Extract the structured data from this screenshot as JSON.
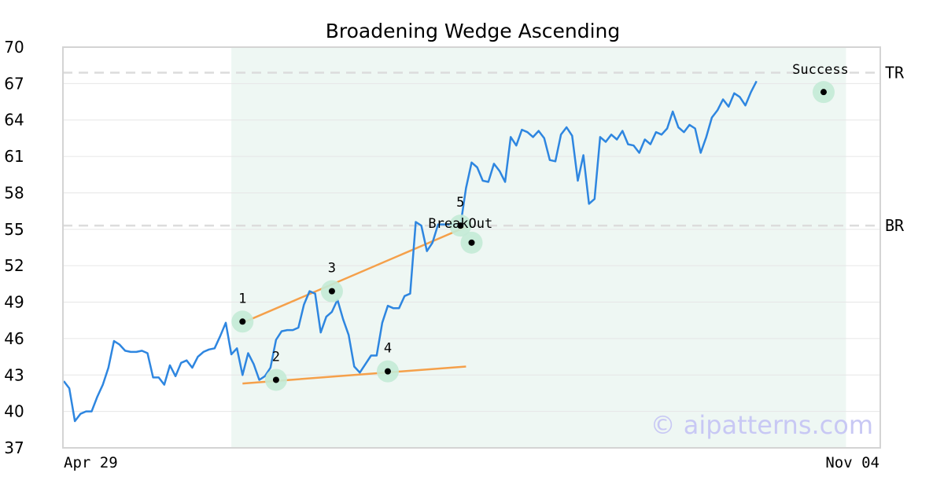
{
  "chart_data": {
    "type": "line",
    "title": "Broadening Wedge Ascending",
    "watermark": "© aipatterns.com",
    "ylim": [
      37,
      70
    ],
    "yticks": [
      37,
      40,
      43,
      46,
      49,
      52,
      55,
      58,
      61,
      64,
      67,
      70
    ],
    "xticks": [
      {
        "label": "Apr 29",
        "x": 0
      },
      {
        "label": "Nov 04",
        "x": 146
      }
    ],
    "xlim": [
      0,
      146
    ],
    "grid": true,
    "colors": {
      "line": "#2e86e0",
      "trendline": "#f5a04a",
      "pattern_zone": "#eef7f3",
      "marker_ring": "#c3ead6",
      "level_line": "#dcdcdc"
    },
    "pattern_zone": {
      "x_start": 30,
      "x_end": 140
    },
    "series": [
      {
        "values": [
          42.5,
          41.9,
          39.2,
          39.8,
          40.0,
          40.0,
          41.2,
          42.2,
          43.6,
          45.8,
          45.5,
          45.0,
          44.9,
          44.9,
          45.0,
          44.8,
          42.8,
          42.8,
          42.2,
          43.8,
          42.9,
          44.0,
          44.2,
          43.6,
          44.5,
          44.9,
          45.1,
          45.2,
          46.2,
          47.3,
          44.7,
          45.2,
          43.0,
          44.8,
          43.9,
          42.6,
          42.9,
          43.6,
          45.9,
          46.6,
          46.7,
          46.7,
          46.9,
          48.8,
          49.9,
          49.7,
          46.5,
          47.8,
          48.2,
          49.2,
          47.6,
          46.3,
          43.7,
          43.2,
          43.9,
          44.6,
          44.6,
          47.3,
          48.7,
          48.5,
          48.5,
          49.5,
          49.7,
          55.6,
          55.3,
          53.2,
          53.9,
          55.4,
          55.4,
          55.4,
          55.4,
          55.3,
          58.4,
          60.5,
          60.1,
          59.0,
          58.9,
          60.4,
          59.8,
          58.9,
          62.6,
          61.9,
          63.2,
          63.0,
          62.6,
          63.1,
          62.5,
          60.7,
          60.6,
          62.8,
          63.4,
          62.7,
          59.0,
          61.1,
          57.1,
          57.5,
          62.6,
          62.2,
          62.8,
          62.4,
          63.1,
          62.0,
          61.9,
          61.3,
          62.4,
          62.0,
          63.0,
          62.8,
          63.3,
          64.7,
          63.4,
          63.0,
          63.6,
          63.3,
          61.3,
          62.6,
          64.2,
          64.8,
          65.7,
          65.1,
          66.2,
          65.9,
          65.2,
          66.3,
          67.2
        ]
      }
    ],
    "levels": [
      {
        "label": "TR",
        "value": 67.9
      },
      {
        "label": "BR",
        "value": 55.3
      }
    ],
    "trendlines": [
      {
        "from": [
          32,
          47.3
        ],
        "to": [
          72,
          55.2
        ]
      },
      {
        "from": [
          32,
          42.3
        ],
        "to": [
          72,
          43.7
        ]
      }
    ],
    "markers": [
      {
        "x": 32,
        "y": 47.4,
        "label": "1",
        "label_pos": "above"
      },
      {
        "x": 38,
        "y": 42.6,
        "label": "2",
        "label_pos": "above"
      },
      {
        "x": 48,
        "y": 49.9,
        "label": "3",
        "label_pos": "above"
      },
      {
        "x": 58,
        "y": 43.3,
        "label": "4",
        "label_pos": "above"
      },
      {
        "x": 71,
        "y": 55.3,
        "label": "5",
        "label_pos": "above2"
      },
      {
        "x": 73,
        "y": 53.9,
        "label": "",
        "label_pos": "above"
      },
      {
        "x": 136,
        "y": 66.3,
        "label": "",
        "label_pos": "above"
      }
    ],
    "annotations": [
      {
        "text": "BreakOut",
        "x": 71,
        "y": 55.3,
        "pos": "above"
      },
      {
        "text": "Success",
        "x": 136,
        "y": 66.3,
        "pos": "above"
      }
    ]
  }
}
